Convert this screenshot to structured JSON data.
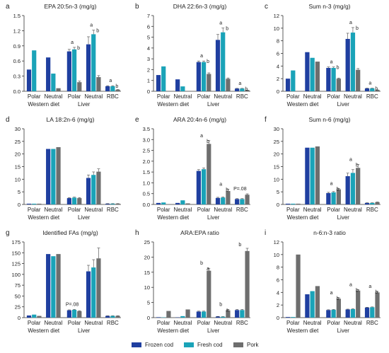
{
  "colors": {
    "frozen_cod": "#1f3fa0",
    "fresh_cod": "#1aa3b8",
    "pork": "#6e6e6e"
  },
  "legend": [
    {
      "label": "Frozen cod",
      "color": "#1f3fa0"
    },
    {
      "label": "Fresh cod",
      "color": "#1aa3b8"
    },
    {
      "label": "Pork",
      "color": "#6e6e6e"
    }
  ],
  "chart_data": [
    {
      "type": "bar",
      "panel": "a",
      "title": "EPA 20:5n-3 (mg/g)",
      "categories": [
        "Polar",
        "Neutral",
        "Polar",
        "Neutral",
        "RBC"
      ],
      "groups": [
        "Western diet",
        "Liver"
      ],
      "series": [
        {
          "name": "Frozen cod",
          "values": [
            0.43,
            0.67,
            0.79,
            0.93,
            0.1
          ],
          "errors": [
            0,
            0,
            0.04,
            0.15,
            0.01
          ]
        },
        {
          "name": "Fresh cod",
          "values": [
            0.81,
            0.35,
            0.83,
            1.13,
            0.1
          ],
          "errors": [
            0,
            0,
            0.04,
            0.08,
            0.01
          ]
        },
        {
          "name": "Pork",
          "values": [
            0,
            0.06,
            0.18,
            0.28,
            0.03
          ],
          "errors": [
            0,
            0,
            0.02,
            0.03,
            0.005
          ]
        }
      ],
      "ylim": [
        0,
        1.5
      ],
      "yticks": [
        0,
        0.3,
        0.6,
        0.9,
        1.2,
        1.5
      ],
      "ytick_labels": [
        "0.0",
        "0.3",
        "0.6",
        "0.9",
        "1.2",
        "1.5"
      ],
      "annotations": [
        "a",
        "b",
        "a",
        "b",
        "a",
        "b"
      ]
    },
    {
      "type": "bar",
      "panel": "b",
      "title": "DHA 22:6n-3 (mg/g)",
      "categories": [
        "Polar",
        "Neutral",
        "Polar",
        "Neutral",
        "RBC"
      ],
      "groups": [
        "Western diet",
        "Liver"
      ],
      "series": [
        {
          "name": "Frozen cod",
          "values": [
            1.5,
            1.1,
            2.7,
            4.75,
            0.25
          ],
          "errors": [
            0,
            0,
            0.1,
            0.5,
            0.02
          ]
        },
        {
          "name": "Fresh cod",
          "values": [
            2.3,
            0.45,
            2.7,
            5.45,
            0.25
          ],
          "errors": [
            0,
            0,
            0.1,
            0.4,
            0.02
          ]
        },
        {
          "name": "Pork",
          "values": [
            0,
            0,
            1.6,
            1.15,
            0.1
          ],
          "errors": [
            0,
            0,
            0.1,
            0.08,
            0.01
          ]
        }
      ],
      "ylim": [
        0,
        7
      ],
      "yticks": [
        0,
        1,
        2,
        3,
        4,
        5,
        6,
        7
      ],
      "ytick_labels": [
        "0",
        "1",
        "2",
        "3",
        "4",
        "5",
        "6",
        "7"
      ],
      "annotations": [
        "a",
        "b",
        "a",
        "b",
        "a",
        "b"
      ]
    },
    {
      "type": "bar",
      "panel": "c",
      "title": "Sum n-3 (mg/g)",
      "categories": [
        "Polar",
        "Neutral",
        "Polar",
        "Neutral",
        "RBC"
      ],
      "groups": [
        "Western diet",
        "Liver"
      ],
      "series": [
        {
          "name": "Frozen cod",
          "values": [
            2.0,
            6.2,
            3.7,
            8.3,
            0.45
          ],
          "errors": [
            0,
            0,
            0.15,
            0.9,
            0.03
          ]
        },
        {
          "name": "Fresh cod",
          "values": [
            3.3,
            5.3,
            3.7,
            9.3,
            0.45
          ],
          "errors": [
            0,
            0,
            0.15,
            0.8,
            0.03
          ]
        },
        {
          "name": "Pork",
          "values": [
            0,
            4.7,
            2.0,
            3.4,
            0.2
          ],
          "errors": [
            0,
            0,
            0.1,
            0.2,
            0.02
          ]
        }
      ],
      "ylim": [
        0,
        12
      ],
      "yticks": [
        0,
        2,
        4,
        6,
        8,
        10,
        12
      ],
      "ytick_labels": [
        "0",
        "2",
        "4",
        "6",
        "8",
        "10",
        "12"
      ],
      "annotations": [
        "a",
        "b",
        "a",
        "b",
        "a",
        "b"
      ]
    },
    {
      "type": "bar",
      "panel": "d",
      "title": "LA 18:2n-6 (mg/g)",
      "categories": [
        "Polar",
        "Neutral",
        "Polar",
        "Neutral",
        "RBC"
      ],
      "groups": [
        "Western diet",
        "Liver"
      ],
      "series": [
        {
          "name": "Frozen cod",
          "values": [
            0.3,
            22,
            2.5,
            10.5,
            0.3
          ],
          "errors": [
            0,
            0,
            0.2,
            1.2,
            0.03
          ]
        },
        {
          "name": "Fresh cod",
          "values": [
            0.3,
            22,
            2.7,
            11.7,
            0.3
          ],
          "errors": [
            0,
            0,
            0.2,
            1.2,
            0.03
          ]
        },
        {
          "name": "Pork",
          "values": [
            0.3,
            22.7,
            2.5,
            13.0,
            0.3
          ],
          "errors": [
            0,
            0,
            0.2,
            1.1,
            0.03
          ]
        }
      ],
      "ylim": [
        0,
        30
      ],
      "yticks": [
        0,
        5,
        10,
        15,
        20,
        25,
        30
      ],
      "ytick_labels": [
        "0",
        "5",
        "10",
        "15",
        "20",
        "25",
        "30"
      ],
      "annotations": []
    },
    {
      "type": "bar",
      "panel": "e",
      "title": "ARA 20:4n-6 (mg/g)",
      "categories": [
        "Polar",
        "Neutral",
        "Polar",
        "Neutral",
        "RBC"
      ],
      "groups": [
        "Western diet",
        "Liver"
      ],
      "series": [
        {
          "name": "Frozen cod",
          "values": [
            0.07,
            0.07,
            1.55,
            0.3,
            0.25
          ],
          "errors": [
            0,
            0,
            0.06,
            0.03,
            0.02
          ]
        },
        {
          "name": "Fresh cod",
          "values": [
            0.09,
            0.19,
            1.63,
            0.32,
            0.25
          ],
          "errors": [
            0,
            0,
            0.06,
            0.03,
            0.02
          ]
        },
        {
          "name": "Pork",
          "values": [
            0,
            0.05,
            2.8,
            0.62,
            0.45
          ],
          "errors": [
            0,
            0,
            0.15,
            0.08,
            0.04
          ]
        }
      ],
      "ylim": [
        0,
        3.5
      ],
      "yticks": [
        0,
        0.5,
        1.0,
        1.5,
        2.0,
        2.5,
        3.0,
        3.5
      ],
      "ytick_labels": [
        "0.0",
        "0.5",
        "1.0",
        "1.5",
        "2.0",
        "2.5",
        "3.0",
        "3.5"
      ],
      "annotations": [
        "a",
        "b",
        "a",
        "b",
        "P=.08"
      ]
    },
    {
      "type": "bar",
      "panel": "f",
      "title": "Sum n-6 (mg/g)",
      "categories": [
        "Polar",
        "Neutral",
        "Polar",
        "Neutral",
        "RBC"
      ],
      "groups": [
        "Western diet",
        "Liver"
      ],
      "series": [
        {
          "name": "Frozen cod",
          "values": [
            0.3,
            22.5,
            4.5,
            11.2,
            0.6
          ],
          "errors": [
            0,
            0,
            0.3,
            1.2,
            0.05
          ]
        },
        {
          "name": "Fresh cod",
          "values": [
            0.3,
            22.5,
            4.8,
            12.5,
            0.6
          ],
          "errors": [
            0,
            0,
            0.3,
            1.3,
            0.05
          ]
        },
        {
          "name": "Pork",
          "values": [
            0.3,
            23.0,
            6.0,
            14.5,
            0.9
          ],
          "errors": [
            0,
            0,
            0.3,
            1.3,
            0.07
          ]
        }
      ],
      "ylim": [
        0,
        30
      ],
      "yticks": [
        0,
        5,
        10,
        15,
        20,
        25,
        30
      ],
      "ytick_labels": [
        "0",
        "5",
        "10",
        "15",
        "20",
        "25",
        "30"
      ],
      "annotations": [
        "a",
        "b",
        "a",
        "b"
      ]
    },
    {
      "type": "bar",
      "panel": "g",
      "title": "Identified FAs (mg/g)",
      "categories": [
        "Polar",
        "Neutral",
        "Polar",
        "Neutral",
        "RBC"
      ],
      "groups": [
        "Western diet",
        "Liver"
      ],
      "series": [
        {
          "name": "Frozen cod",
          "values": [
            5,
            147,
            17,
            107,
            4
          ],
          "errors": [
            0,
            0,
            1,
            14,
            0.3
          ]
        },
        {
          "name": "Fresh cod",
          "values": [
            7,
            142,
            18,
            116,
            4
          ],
          "errors": [
            0,
            0,
            1,
            18,
            0.3
          ]
        },
        {
          "name": "Pork",
          "values": [
            4,
            147,
            15,
            137,
            4
          ],
          "errors": [
            0,
            0,
            1,
            24,
            0.3
          ]
        }
      ],
      "ylim": [
        0,
        175
      ],
      "yticks": [
        0,
        25,
        50,
        75,
        100,
        125,
        150,
        175
      ],
      "ytick_labels": [
        "0",
        "25",
        "50",
        "75",
        "100",
        "125",
        "150",
        "175"
      ],
      "annotations": [
        "P=.08"
      ]
    },
    {
      "type": "bar",
      "panel": "h",
      "title": "ARA:EPA ratio",
      "categories": [
        "Polar",
        "Neutral",
        "Polar",
        "Neutral",
        "RBC"
      ],
      "groups": [
        "Western diet",
        "Liver"
      ],
      "series": [
        {
          "name": "Frozen cod",
          "values": [
            0.15,
            0.1,
            2.0,
            0.35,
            2.5
          ],
          "errors": [
            0,
            0,
            0.15,
            0.05,
            0.2
          ]
        },
        {
          "name": "Fresh cod",
          "values": [
            0.1,
            0.5,
            2.0,
            0.3,
            2.5
          ],
          "errors": [
            0,
            0,
            0.15,
            0.05,
            0.2
          ]
        },
        {
          "name": "Pork",
          "values": [
            2.2,
            2.7,
            15.5,
            2.4,
            22.0
          ],
          "errors": [
            0,
            0,
            0.8,
            0.3,
            0.9
          ]
        }
      ],
      "ylim": [
        0,
        25
      ],
      "yticks": [
        0,
        5,
        10,
        15,
        20,
        25
      ],
      "ytick_labels": [
        "0",
        "5",
        "10",
        "15",
        "20",
        "25"
      ],
      "annotations": [
        "b",
        "a",
        "b",
        "a",
        "b"
      ]
    },
    {
      "type": "bar",
      "panel": "i",
      "title": "n-6:n-3 ratio",
      "categories": [
        "Polar",
        "Neutral",
        "Polar",
        "Neutral",
        "RBC"
      ],
      "groups": [
        "Western diet",
        "Liver"
      ],
      "series": [
        {
          "name": "Frozen cod",
          "values": [
            0.1,
            3.7,
            1.2,
            1.3,
            1.6
          ],
          "errors": [
            0,
            0,
            0.05,
            0.05,
            0.05
          ]
        },
        {
          "name": "Fresh cod",
          "values": [
            0.1,
            4.2,
            1.25,
            1.35,
            1.65
          ],
          "errors": [
            0,
            0,
            0.05,
            0.05,
            0.05
          ]
        },
        {
          "name": "Pork",
          "values": [
            10.0,
            5.0,
            3.0,
            4.3,
            4.0
          ],
          "errors": [
            0,
            0,
            0.15,
            0.15,
            0.15
          ]
        }
      ],
      "ylim": [
        0,
        12
      ],
      "yticks": [
        0,
        2,
        4,
        6,
        8,
        10,
        12
      ],
      "ytick_labels": [
        "0",
        "2",
        "4",
        "6",
        "8",
        "10",
        "12"
      ],
      "annotations": [
        "a",
        "b",
        "a",
        "b",
        "a",
        "b"
      ]
    }
  ]
}
